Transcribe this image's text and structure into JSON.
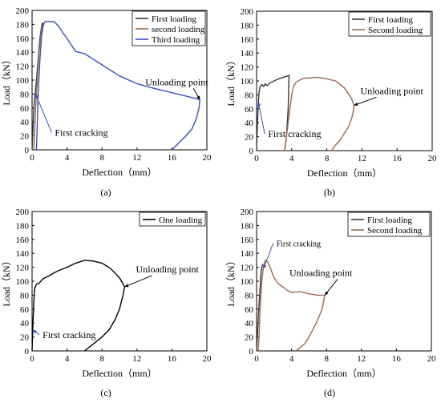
{
  "chart_data": [
    {
      "panel": "(a)",
      "type": "line",
      "xlabel": "Deflection（mm）",
      "ylabel": "Load（kN）",
      "xlim": [
        0,
        20
      ],
      "ylim": [
        0,
        200
      ],
      "xticks": [
        "0",
        "4",
        "8",
        "12",
        "16",
        "20"
      ],
      "yticks": [
        "0",
        "20",
        "40",
        "60",
        "80",
        "100",
        "120",
        "140",
        "160",
        "180",
        "200"
      ],
      "legend": "top-right",
      "series": [
        {
          "name": "First loading",
          "color": "#3a3a3a",
          "x": [
            0,
            0.2,
            0.35,
            0.5,
            0.7,
            0.9,
            1.1,
            1.2,
            1.3
          ],
          "y": [
            0,
            60,
            80,
            100,
            130,
            160,
            178,
            182,
            180
          ]
        },
        {
          "name": "second loading",
          "color": "#9b6a4c",
          "x": [
            0.2,
            0.4,
            0.6,
            0.8,
            1.0,
            1.2,
            1.4
          ],
          "y": [
            0,
            60,
            100,
            140,
            165,
            178,
            180
          ]
        },
        {
          "name": "Third loading",
          "color": "#3c4fc9",
          "x": [
            0.5,
            0.7,
            0.9,
            1.1,
            1.3,
            1.5,
            2.0,
            2.5,
            3.0,
            3.5,
            4.0,
            4.5,
            5.0,
            6.0,
            8.0,
            10.0,
            12.0,
            14.0,
            16.0,
            18.0,
            19.2,
            19.1,
            18.8,
            18.3,
            17.6,
            16.8,
            16.0
          ],
          "y": [
            0,
            80,
            130,
            165,
            180,
            184,
            184,
            184,
            178,
            168,
            160,
            150,
            141,
            138,
            122,
            106,
            95,
            88,
            82,
            76,
            72,
            60,
            45,
            30,
            20,
            10,
            0
          ]
        }
      ],
      "annotations": [
        {
          "text": "Unloading point",
          "x": 19.2,
          "y": 72
        },
        {
          "text": "First cracking",
          "x": 0.4,
          "y": 80
        }
      ],
      "caption": "(a)"
    },
    {
      "panel": "(b)",
      "type": "line",
      "xlabel": "Deflection（mm）",
      "ylabel": "Load（kN）",
      "xlim": [
        0,
        20
      ],
      "ylim": [
        0,
        200
      ],
      "xticks": [
        "0",
        "4",
        "8",
        "12",
        "16",
        "20"
      ],
      "yticks": [
        "0",
        "20",
        "40",
        "60",
        "80",
        "100",
        "120",
        "140",
        "160",
        "180",
        "200"
      ],
      "legend": "top-right",
      "series": [
        {
          "name": "First loading",
          "color": "#3a3a3a",
          "x": [
            0,
            0.1,
            0.2,
            0.3,
            0.4,
            0.6,
            0.8,
            1.0,
            1.2,
            1.5,
            2.0,
            2.5,
            3.0,
            3.5,
            3.7,
            3.6,
            3.4,
            3.2
          ],
          "y": [
            0,
            40,
            70,
            85,
            92,
            95,
            92,
            96,
            93,
            97,
            100,
            103,
            105,
            107,
            108,
            60,
            20,
            0
          ]
        },
        {
          "name": "Second loading",
          "color": "#9b6a4c",
          "x": [
            3.2,
            3.5,
            3.8,
            4.0,
            4.2,
            4.5,
            5.0,
            5.5,
            6.0,
            6.5,
            7.0,
            8.0,
            9.0,
            10.0,
            10.8,
            11.1,
            11.0,
            10.8,
            10.5,
            10.0,
            9.5,
            9.0,
            8.5
          ],
          "y": [
            0,
            30,
            60,
            80,
            92,
            98,
            102,
            104,
            104,
            105,
            105,
            103,
            100,
            90,
            75,
            65,
            55,
            45,
            35,
            25,
            15,
            8,
            0
          ]
        }
      ],
      "annotations": [
        {
          "text": "Unloading point",
          "x": 11.1,
          "y": 65
        },
        {
          "text": "First cracking",
          "x": 0.2,
          "y": 70
        }
      ],
      "caption": "(b)"
    },
    {
      "panel": "(c)",
      "type": "line",
      "xlabel": "Deflection（mm）",
      "ylabel": "Load（kN）",
      "xlim": [
        0,
        20
      ],
      "ylim": [
        0,
        200
      ],
      "xticks": [
        "0",
        "4",
        "8",
        "12",
        "16",
        "20"
      ],
      "yticks": [
        "0",
        "20",
        "40",
        "60",
        "80",
        "100",
        "120",
        "140",
        "160",
        "180",
        "200"
      ],
      "legend": "top-right",
      "series": [
        {
          "name": "One loading",
          "color": "#000000",
          "x": [
            0,
            0.1,
            0.2,
            0.3,
            0.5,
            0.8,
            1.2,
            1.5,
            2.0,
            2.5,
            3.0,
            4.0,
            5.0,
            6.0,
            7.0,
            8.0,
            9.0,
            10.0,
            10.6,
            10.4,
            10.0,
            9.5,
            8.8,
            8.0,
            7.0,
            6.0
          ],
          "y": [
            0,
            40,
            70,
            90,
            96,
            97,
            103,
            105,
            108,
            112,
            115,
            120,
            126,
            130,
            129,
            126,
            118,
            105,
            92,
            80,
            60,
            45,
            30,
            20,
            10,
            0
          ]
        }
      ],
      "annotations": [
        {
          "text": "Unloading point",
          "x": 10.6,
          "y": 92
        },
        {
          "text": "First cracking",
          "x": 0.1,
          "y": 30
        }
      ],
      "caption": "(c)"
    },
    {
      "panel": "(d)",
      "type": "line",
      "xlabel": "Deflection（mm）",
      "ylabel": "Load（kN）",
      "xlim": [
        0,
        20
      ],
      "ylim": [
        0,
        200
      ],
      "xticks": [
        "0",
        "4",
        "8",
        "12",
        "16",
        "20"
      ],
      "yticks": [
        "0",
        "20",
        "40",
        "60",
        "80",
        "100",
        "120",
        "140",
        "160",
        "180",
        "200"
      ],
      "legend": "top-right",
      "series": [
        {
          "name": "First loading",
          "color": "#3a3a3a",
          "x": [
            0,
            0.2,
            0.4,
            0.5,
            0.6,
            0.7
          ],
          "y": [
            0,
            50,
            90,
            110,
            120,
            125
          ]
        },
        {
          "name": "Second loading",
          "color": "#9b6a4c",
          "x": [
            0.2,
            0.4,
            0.6,
            0.8,
            1.0,
            1.3,
            1.6,
            2.0,
            2.5,
            3.0,
            3.5,
            4.0,
            5.0,
            6.0,
            7.0,
            7.8,
            7.5,
            7.0,
            6.5,
            6.0,
            5.5,
            5.0,
            4.5
          ],
          "y": [
            0,
            60,
            100,
            122,
            130,
            127,
            118,
            105,
            96,
            92,
            87,
            84,
            85,
            82,
            80,
            80,
            60,
            45,
            32,
            20,
            10,
            5,
            0
          ]
        }
      ],
      "annotations": [
        {
          "text": "Unloading point",
          "x": 7.8,
          "y": 80
        },
        {
          "text": "First cracking",
          "x": 0.8,
          "y": 118
        }
      ],
      "caption": "(d)"
    }
  ]
}
